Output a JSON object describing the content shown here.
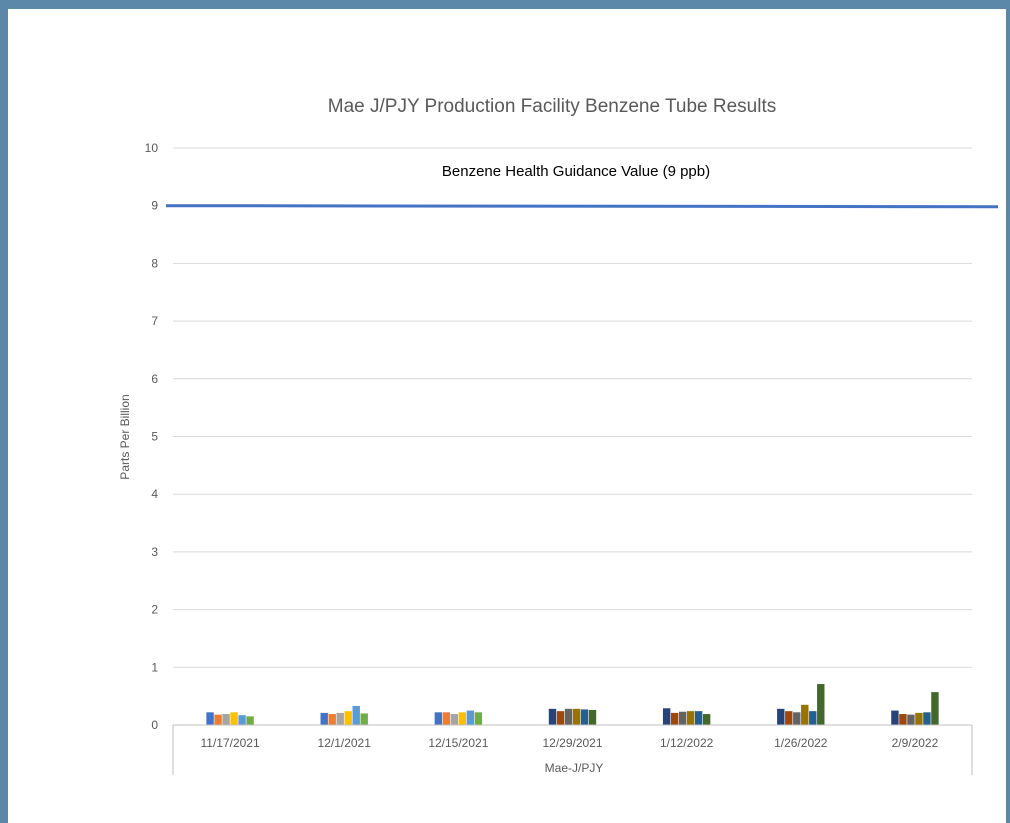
{
  "chart_data": {
    "type": "bar",
    "title": "Mae J/PJY Production Facility Benzene Tube Results",
    "ylabel": "Parts Per Billion",
    "xlabel": "Mae-J/PJY",
    "ylim": [
      0,
      10
    ],
    "yticks": [
      0,
      1,
      2,
      3,
      4,
      5,
      6,
      7,
      8,
      9,
      10
    ],
    "grid": true,
    "legend": "none",
    "categories": [
      "11/17/2021",
      "12/1/2021",
      "12/15/2021",
      "12/29/2021",
      "1/12/2022",
      "1/26/2022",
      "2/9/2022"
    ],
    "series_colors": [
      "#4472c4",
      "#ed7d31",
      "#a5a5a5",
      "#ffc000",
      "#5b9bd5",
      "#70ad47",
      "#264478",
      "#9e480e",
      "#636363",
      "#997300",
      "#255e91",
      "#43682b"
    ],
    "groups": [
      {
        "category": "11/17/2021",
        "series_index": [
          0,
          1,
          2,
          3,
          4,
          5
        ],
        "values": [
          0.22,
          0.18,
          0.19,
          0.22,
          0.17,
          0.15
        ]
      },
      {
        "category": "12/1/2021",
        "series_index": [
          0,
          1,
          2,
          3,
          4,
          5
        ],
        "values": [
          0.21,
          0.19,
          0.21,
          0.24,
          0.33,
          0.2
        ]
      },
      {
        "category": "12/15/2021",
        "series_index": [
          0,
          1,
          2,
          3,
          4,
          5
        ],
        "values": [
          0.22,
          0.22,
          0.19,
          0.22,
          0.25,
          0.22
        ]
      },
      {
        "category": "12/29/2021",
        "series_index": [
          6,
          7,
          8,
          9,
          10,
          11
        ],
        "values": [
          0.28,
          0.24,
          0.28,
          0.28,
          0.27,
          0.26
        ]
      },
      {
        "category": "1/12/2022",
        "series_index": [
          6,
          7,
          8,
          9,
          10,
          11
        ],
        "values": [
          0.29,
          0.21,
          0.23,
          0.24,
          0.24,
          0.19
        ]
      },
      {
        "category": "1/26/2022",
        "series_index": [
          6,
          7,
          8,
          9,
          10,
          11
        ],
        "values": [
          0.28,
          0.24,
          0.22,
          0.35,
          0.24,
          0.71
        ]
      },
      {
        "category": "2/9/2022",
        "series_index": [
          6,
          7,
          8,
          9,
          10,
          11
        ],
        "values": [
          0.25,
          0.19,
          0.18,
          0.21,
          0.22,
          0.57
        ]
      }
    ],
    "reference_line": {
      "value": 9,
      "label": "Benzene Health Guidance Value (9 ppb)",
      "color": "#4472c4"
    }
  }
}
